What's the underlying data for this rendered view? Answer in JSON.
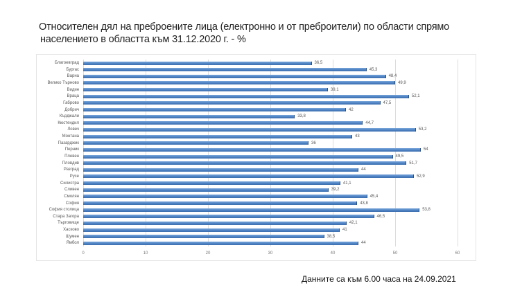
{
  "title_line1": "Относителен дял на преброените лица (електронно и от преброители) по области спрямо",
  "title_line2": "населението в областта към 31.12.2020 г. - %",
  "footer_note": "Данните са към 6.00 часа на 24.09.2021",
  "colors": {
    "bar": "#4a7fc1",
    "grid": "#dcdcdc",
    "text": "#555555"
  },
  "chart_data": {
    "type": "bar",
    "orientation": "horizontal",
    "title": "Относителен дял на преброените лица (електронно и от преброители) по области спрямо населението в областта към 31.12.2020 г. - %",
    "xlabel": "",
    "ylabel": "",
    "xlim": [
      0,
      60
    ],
    "x_ticks": [
      "0",
      "10",
      "20",
      "30",
      "40",
      "50",
      "60"
    ],
    "grid": true,
    "legend": false,
    "categories": [
      "Благоевград",
      "Бургас",
      "Варна",
      "Велико Търново",
      "Видин",
      "Враца",
      "Габрово",
      "Добрич",
      "Кърджали",
      "Кюстендил",
      "Ловеч",
      "Монтана",
      "Пазарджик",
      "Перник",
      "Плевен",
      "Пловдив",
      "Разград",
      "Русе",
      "Силистра",
      "Сливен",
      "Смолян",
      "София",
      "София столица",
      "Стара Загора",
      "Търговище",
      "Хасково",
      "Шумен",
      "Ямбол"
    ],
    "values": [
      36.5,
      45.3,
      48.4,
      49.9,
      39.1,
      52.1,
      47.5,
      42,
      33.8,
      44.7,
      53.2,
      43,
      36,
      54,
      49.5,
      51.7,
      44,
      52.9,
      41.1,
      39.2,
      45.4,
      43.8,
      53.8,
      46.5,
      42.1,
      41,
      38.5,
      44
    ],
    "value_labels": [
      "36,5",
      "45,3",
      "48,4",
      "49,9",
      "39,1",
      "52,1",
      "47,5",
      "42",
      "33,8",
      "44,7",
      "53,2",
      "43",
      "36",
      "54",
      "49,5",
      "51,7",
      "44",
      "52,9",
      "41,1",
      "39,2",
      "45,4",
      "43,8",
      "53,8",
      "46,5",
      "42,1",
      "41",
      "38,5",
      "44"
    ]
  }
}
